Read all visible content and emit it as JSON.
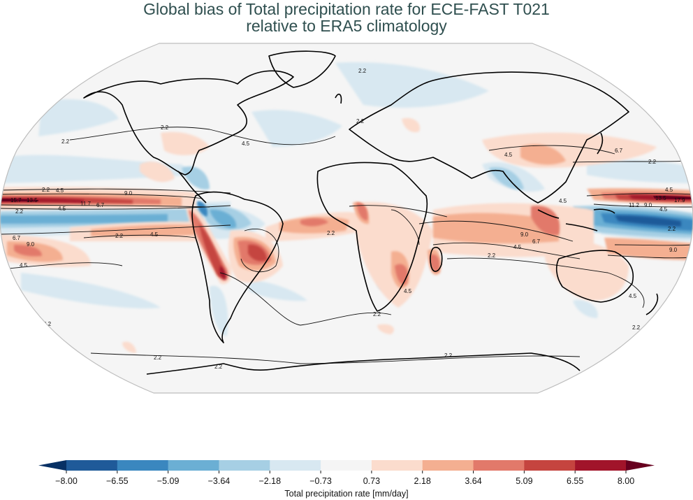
{
  "title": {
    "line1": "Global bias of Total precipitation rate for ECE-FAST T021",
    "line2": "relative to ERA5 climatology",
    "color": "#2f4f4f"
  },
  "chart_data": {
    "type": "heatmap",
    "subtype": "filled-contour map (Robinson projection) with overlaid climatology contour lines",
    "title": "Global bias of Total precipitation rate for ECE-FAST T021 relative to ERA5 climatology",
    "variable": "Total precipitation rate bias",
    "units": "mm/day",
    "colorbar": {
      "label": "Total precipitation rate [mm/day]",
      "orientation": "horizontal",
      "extend": "both",
      "ticks": [
        -8.0,
        -6.55,
        -5.09,
        -3.64,
        -2.18,
        -0.73,
        0.73,
        2.18,
        3.64,
        5.09,
        6.55,
        8.0
      ],
      "tick_labels": [
        "−8.00",
        "−6.55",
        "−5.09",
        "−3.64",
        "−2.18",
        "−0.73",
        "0.73",
        "2.18",
        "3.64",
        "5.09",
        "6.55",
        "8.00"
      ],
      "colors": [
        "#1f5a99",
        "#3a87bf",
        "#6bafd4",
        "#a6cfe4",
        "#d8e8f1",
        "#f5f5f5",
        "#fbdccd",
        "#f4af91",
        "#e2796a",
        "#c5443f",
        "#a1142a"
      ],
      "under_color": "#073064",
      "over_color": "#67001f",
      "range": [
        -8.0,
        8.0
      ]
    },
    "contour_lines": {
      "levels": [
        2.2,
        4.5,
        6.7,
        9.0,
        11.2,
        13.5,
        15.7,
        17.9
      ],
      "description": "ERA5 climatological precipitation contours (mm/day)"
    },
    "notable_features": [
      {
        "region": "Central Pacific ITCZ (north of equator)",
        "bias": "strong positive, > 8"
      },
      {
        "region": "Western Pacific north of equator",
        "bias": "strong positive, > 8"
      },
      {
        "region": "Western Pacific / Maritime Continent equatorial band",
        "bias": "strong negative, < -6.55"
      },
      {
        "region": "Equatorial eastern Pacific band",
        "bias": "negative, -2 to -5"
      },
      {
        "region": "South Pacific Convergence Zone / southeastern Pacific",
        "bias": "positive, 2 to 5"
      },
      {
        "region": "Central South America (Brazil highlands)",
        "bias": "positive, 5 to 8"
      },
      {
        "region": "Andes",
        "bias": "strong positive, > 6.5"
      },
      {
        "region": "Northern South America / Amazon",
        "bias": "negative, -2 to -6"
      },
      {
        "region": "Tropical Atlantic ITCZ south",
        "bias": "positive, 2 to 6"
      },
      {
        "region": "Southern Africa / Madagascar",
        "bias": "positive, 2 to 6"
      },
      {
        "region": "Indian Ocean",
        "bias": "positive, 2 to 5"
      },
      {
        "region": "Tibetan Plateau / Himalaya / East Asia",
        "bias": "positive, 2 to 5"
      },
      {
        "region": "India / Bay of Bengal",
        "bias": "negative, -2 to -5"
      },
      {
        "region": "Northern Australia",
        "bias": "positive, 2 to 5"
      },
      {
        "region": "North Atlantic / Eurasia extratropics",
        "bias": "weak negative, -0.73 to -2.18"
      }
    ],
    "grid": false,
    "projection": "Robinson",
    "legend_position": "bottom"
  }
}
